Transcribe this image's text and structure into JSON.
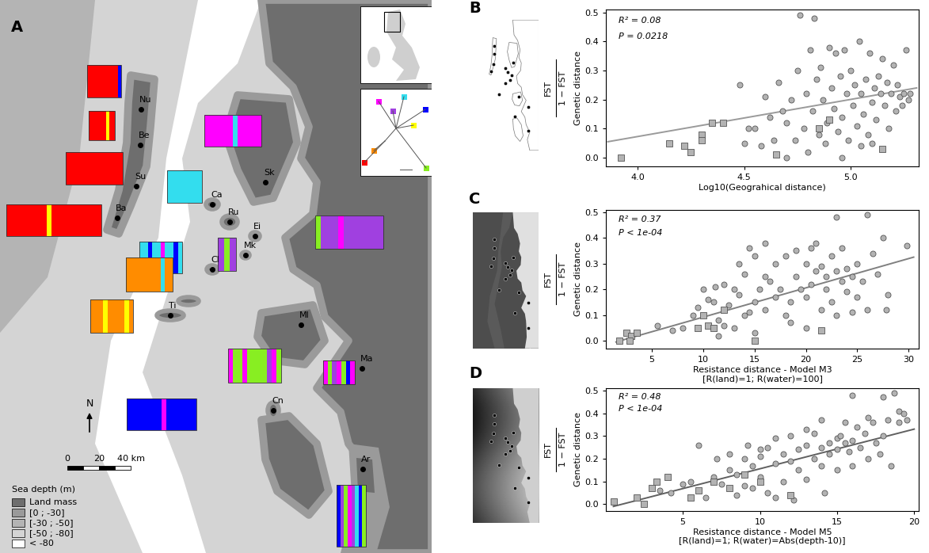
{
  "map": {
    "panel": "A",
    "sites": [
      "Nu",
      "Be",
      "Su",
      "Ba",
      "Ca",
      "Ru",
      "Sk",
      "Ei",
      "Mk",
      "Cl",
      "Ti",
      "Ml",
      "Ma",
      "Cn",
      "Ar"
    ],
    "north": "N",
    "scale_labels": [
      "0",
      "20",
      "40 km"
    ],
    "depth_legend": {
      "title": "Sea depth (m)",
      "entries": [
        {
          "label": "Land mass",
          "color": "#6e6e6e"
        },
        {
          "label": "[0 ; -30]",
          "color": "#9a9a9a"
        },
        {
          "label": "[-30 ; -50]",
          "color": "#b4b4b4"
        },
        {
          "label": "[-50 ; -80]",
          "color": "#d4d4d4"
        },
        {
          "label": "< -80",
          "color": "#ffffff"
        }
      ]
    },
    "clusters": [
      "#ff00ff",
      "#33ddee",
      "#0000ff",
      "#ffff00",
      "#a040e0",
      "#ff8c00",
      "#ff0000",
      "#88ee22"
    ],
    "structure": [
      {
        "site": "Nu",
        "colors": [
          "#ff0000",
          "#ff0000",
          "#ff0000",
          "#ff0000",
          "#ff0000",
          "#ff0000",
          "#ff0000",
          "#ff0000",
          "#ff0000",
          "#0000ff"
        ]
      },
      {
        "site": "Be",
        "colors": [
          "#ff0000",
          "#ff0000",
          "#ff0000",
          "#ff0000",
          "#ff0000",
          "#ff0000",
          "#ffff00",
          "#ff0000",
          "#ff0000"
        ]
      },
      {
        "site": "Su",
        "colors": [
          "#ff0000",
          "#ff0000",
          "#ff0000",
          "#ff0000",
          "#ff0000",
          "#ff0000",
          "#ff0000",
          "#ff0000",
          "#ff0000",
          "#ff0000",
          "#ff0000",
          "#ff0000"
        ]
      },
      {
        "site": "Ba",
        "colors": [
          "#ff0000",
          "#ff0000",
          "#ff0000",
          "#ff0000",
          "#ff0000",
          "#ff0000",
          "#ff0000",
          "#ff0000",
          "#ffff00",
          "#ff0000",
          "#ff0000",
          "#ff0000",
          "#ff0000",
          "#ff0000",
          "#ff0000",
          "#ff0000",
          "#ff0000",
          "#ff0000",
          "#ff0000"
        ]
      },
      {
        "site": "Ca",
        "colors": [
          "#33ddee",
          "#33ddee",
          "#33ddee",
          "#33ddee",
          "#33ddee",
          "#33ddee",
          "#33ddee",
          "#33ddee"
        ]
      },
      {
        "site": "Ru",
        "colors": [
          "#33ddee",
          "#33ddee",
          "#0000ff",
          "#33ddee",
          "#33ddee",
          "#ff00ff",
          "#33ddee",
          "#33ddee",
          "#0000ff",
          "#33ddee"
        ]
      },
      {
        "site": "Sk",
        "colors": [
          "#ff00ff",
          "#ff00ff",
          "#ff00ff",
          "#ff00ff",
          "#ff00ff",
          "#ff00ff",
          "#33ddee",
          "#ff00ff",
          "#ff00ff",
          "#ff00ff",
          "#ff00ff",
          "#ff00ff"
        ]
      },
      {
        "site": "Ei",
        "colors": [
          "#88ee22",
          "#a040e0",
          "#a040e0",
          "#a040e0",
          "#ff00ff",
          "#a040e0",
          "#a040e0",
          "#a040e0",
          "#a040e0",
          "#a040e0",
          "#a040e0",
          "#a040e0"
        ]
      },
      {
        "site": "Mk",
        "colors": [
          "#a040e0",
          "#88ee22",
          "#a040e0"
        ]
      },
      {
        "site": "Cl",
        "colors": [
          "#ff8c00",
          "#ff8c00",
          "#ff8c00",
          "#ff8c00",
          "#ff8c00",
          "#ff8c00",
          "#ff8c00",
          "#ff8c00",
          "#ff8c00",
          "#33ddee",
          "#ff8c00",
          "#ff8c00"
        ]
      },
      {
        "site": "Ti",
        "colors": [
          "#ff8c00",
          "#ff8c00",
          "#ff8c00",
          "#ffff00",
          "#ff8c00",
          "#ff8c00",
          "#ff8c00",
          "#ff8c00",
          "#ffff00",
          "#ff8c00"
        ]
      },
      {
        "site": "Ml",
        "colors": [
          "#ff00ff",
          "#88ee22",
          "#88ee22",
          "#ff00ff",
          "#88ee22",
          "#88ee22",
          "#88ee22",
          "#88ee22",
          "#a040e0",
          "#ff00ff",
          "#88ee22"
        ]
      },
      {
        "site": "Ma",
        "colors": [
          "#ff00ff",
          "#88ee22",
          "#a040e0",
          "#ff00ff",
          "#88ee22",
          "#0000ff",
          "#ff00ff"
        ]
      },
      {
        "site": "Cn",
        "colors": [
          "#0000ff",
          "#0000ff",
          "#0000ff",
          "#0000ff",
          "#0000ff",
          "#0000ff",
          "#0000ff",
          "#0000ff",
          "#ff00ff",
          "#0000ff",
          "#0000ff",
          "#0000ff",
          "#0000ff",
          "#0000ff",
          "#0000ff",
          "#0000ff"
        ]
      },
      {
        "site": "Ar",
        "colors": [
          "#0000ff",
          "#a040e0",
          "#88ee22",
          "#ff00ff",
          "#a040e0",
          "#33ddee",
          "#0000ff",
          "#88ee22"
        ]
      }
    ]
  },
  "chart_data": [
    {
      "type": "scatter",
      "panel": "B",
      "xlabel": "Log10(Geograhical distance)",
      "ylabel": "Genetic distance",
      "ylabel_numerator": "FST",
      "ylabel_denominator": "1 − FST",
      "annotations": [
        "R² = 0.08",
        "P = 0.0218"
      ],
      "xlim": [
        3.85,
        5.32
      ],
      "ylim": [
        -0.03,
        0.51
      ],
      "xticks": [
        {
          "value": 4,
          "label": "4.0"
        },
        4.5,
        {
          "value": 5,
          "label": "5.0"
        }
      ],
      "yticks": [
        {
          "value": 0,
          "label": "0.0"
        },
        0.1,
        0.2,
        0.3,
        0.4,
        0.5
      ],
      "series": [
        {
          "marker": "circle",
          "color": "#b3b3b3",
          "x": [
            4.48,
            4.5,
            4.52,
            4.55,
            4.58,
            4.6,
            4.62,
            4.64,
            4.66,
            4.68,
            4.7,
            4.72,
            4.74,
            4.75,
            4.76,
            4.78,
            4.79,
            4.8,
            4.81,
            4.82,
            4.83,
            4.84,
            4.85,
            4.86,
            4.87,
            4.88,
            4.89,
            4.9,
            4.91,
            4.92,
            4.93,
            4.94,
            4.95,
            4.96,
            4.97,
            4.98,
            4.99,
            5.0,
            5.01,
            5.02,
            5.03,
            5.04,
            5.05,
            5.06,
            5.07,
            5.08,
            5.09,
            5.1,
            5.11,
            5.12,
            5.13,
            5.14,
            5.15,
            5.16,
            5.17,
            5.18,
            5.19,
            5.2,
            5.21,
            5.22,
            5.23,
            5.24,
            5.25,
            5.26,
            5.27,
            5.28,
            4.96,
            4.7,
            5.05,
            5.1
          ],
          "values": [
            0.25,
            0.05,
            0.1,
            0.1,
            0.04,
            0.21,
            0.14,
            0.06,
            0.26,
            0.16,
            0.12,
            0.2,
            0.06,
            0.3,
            0.49,
            0.1,
            0.22,
            0.02,
            0.37,
            0.16,
            0.48,
            0.27,
            0.08,
            0.31,
            0.2,
            0.05,
            0.12,
            0.38,
            0.24,
            0.17,
            0.36,
            0.09,
            0.28,
            0.14,
            0.37,
            0.22,
            0.06,
            0.3,
            0.18,
            0.25,
            0.11,
            0.4,
            0.22,
            0.15,
            0.27,
            0.08,
            0.36,
            0.19,
            0.24,
            0.13,
            0.28,
            0.22,
            0.34,
            0.18,
            0.26,
            0.1,
            0.22,
            0.32,
            0.16,
            0.25,
            0.21,
            0.18,
            0.22,
            0.37,
            0.2,
            0.22,
            0.0,
            0.0,
            0.04,
            0.05
          ]
        },
        {
          "marker": "square",
          "color": "#b3b3b3",
          "x": [
            3.92,
            4.15,
            4.22,
            4.25,
            4.3,
            4.3,
            4.35,
            4.4,
            4.85,
            4.9,
            5.15,
            4.65
          ],
          "values": [
            0.0,
            0.05,
            0.04,
            0.02,
            0.08,
            0.06,
            0.12,
            0.12,
            0.1,
            0.13,
            0.03,
            0.01
          ]
        }
      ],
      "fit": {
        "x": [
          3.86,
          5.31
        ],
        "values": [
          0.055,
          0.24
        ],
        "color": "#9a9a9a"
      }
    },
    {
      "type": "scatter",
      "panel": "C",
      "xlabel": "Resistance distance - Model M3\n[R(land)=1; R(water)=100]",
      "ylabel": "Genetic distance",
      "ylabel_numerator": "FST",
      "ylabel_denominator": "1 − FST",
      "annotations": [
        "R² = 0.37",
        "P < 1e-04"
      ],
      "xlim": [
        0.5,
        31
      ],
      "ylim": [
        -0.03,
        0.51
      ],
      "xticks": [
        5,
        10,
        15,
        20,
        25,
        30
      ],
      "yticks": [
        {
          "value": 0,
          "label": "0.0"
        },
        0.1,
        0.2,
        0.3,
        0.4,
        0.5
      ],
      "series": [
        {
          "marker": "circle",
          "color": "#b3b3b3",
          "x": [
            5.5,
            7,
            8,
            9,
            9.5,
            10,
            10.5,
            11,
            11.2,
            11.5,
            12,
            12,
            12.5,
            13,
            13,
            13.5,
            14,
            14,
            14.5,
            15,
            15,
            15.5,
            16,
            16,
            16.5,
            17,
            17,
            17.5,
            18,
            18,
            18.5,
            19,
            19,
            19.5,
            20,
            20,
            20.5,
            20.5,
            21,
            21,
            21.5,
            21.5,
            22,
            22,
            22.5,
            22.5,
            23,
            23,
            23,
            23.5,
            23.5,
            24,
            24,
            24.5,
            24.5,
            25,
            25,
            25.5,
            26,
            26,
            26.5,
            27,
            27.5,
            27.8,
            28,
            29.8,
            16,
            15,
            14.5,
            20,
            18.5,
            13.5,
            11.5
          ],
          "values": [
            0.06,
            0.04,
            0.05,
            0.1,
            0.13,
            0.2,
            0.16,
            0.15,
            0.21,
            0.08,
            0.06,
            0.22,
            0.14,
            0.2,
            0.05,
            0.18,
            0.26,
            0.1,
            0.11,
            0.15,
            0.03,
            0.2,
            0.12,
            0.25,
            0.23,
            0.3,
            0.17,
            0.2,
            0.1,
            0.33,
            0.15,
            0.25,
            0.35,
            0.2,
            0.3,
            0.17,
            0.36,
            0.22,
            0.38,
            0.27,
            0.12,
            0.29,
            0.2,
            0.25,
            0.15,
            0.33,
            0.48,
            0.27,
            0.1,
            0.36,
            0.23,
            0.19,
            0.28,
            0.11,
            0.25,
            0.17,
            0.3,
            0.23,
            0.49,
            0.12,
            0.34,
            0.26,
            0.4,
            0.12,
            0.18,
            0.37,
            0.38,
            0.33,
            0.36,
            0.05,
            0.07,
            0.3,
            0.02
          ]
        },
        {
          "marker": "square",
          "color": "#b3b3b3",
          "x": [
            1.8,
            2.5,
            3.0,
            3.5,
            2.8,
            9.5,
            10.5,
            11,
            12,
            15,
            21.5,
            10
          ],
          "values": [
            0.0,
            0.03,
            0.02,
            0.03,
            0.0,
            0.05,
            0.06,
            0.05,
            0.12,
            0.0,
            0.04,
            0.1
          ]
        }
      ],
      "fit": {
        "x": [
          1.5,
          30.5
        ],
        "values": [
          -0.005,
          0.325
        ],
        "color": "#808080"
      }
    },
    {
      "type": "scatter",
      "panel": "D",
      "xlabel": "Resistance distance - Model M5\n[R(land)=1; R(water)=Abs(depth-10)]",
      "ylabel": "Genetic distance",
      "ylabel_numerator": "FST",
      "ylabel_denominator": "1 − FST",
      "annotations": [
        "R² = 0.48",
        "P < 1e-04"
      ],
      "xlim": [
        0,
        20.3
      ],
      "ylim": [
        -0.03,
        0.51
      ],
      "xticks": [
        5,
        10,
        15,
        20
      ],
      "yticks": [
        {
          "value": 0,
          "label": "0.0"
        },
        0.1,
        0.2,
        0.3,
        0.4,
        0.5
      ],
      "series": [
        {
          "marker": "circle",
          "color": "#b3b3b3",
          "x": [
            3.5,
            4.2,
            5,
            5.5,
            6,
            6.5,
            7,
            7.2,
            7.5,
            8,
            8,
            8.5,
            8.5,
            9,
            9,
            9.5,
            9.5,
            10,
            10,
            10.5,
            10.5,
            11,
            11,
            11.5,
            11.5,
            12,
            12,
            12.5,
            12.5,
            13,
            13,
            13,
            13.5,
            13.5,
            14,
            14,
            14,
            14.5,
            14.5,
            15,
            15,
            15,
            15.2,
            15.5,
            15.5,
            15.8,
            16,
            16,
            16,
            16.3,
            16.5,
            16.8,
            17,
            17,
            17.3,
            17.5,
            17.8,
            18,
            18,
            18.3,
            18.5,
            18.7,
            19,
            19,
            19.3,
            19.5,
            14.2,
            12.2,
            11,
            10,
            9.2
          ],
          "values": [
            0.06,
            0.05,
            0.09,
            0.1,
            0.26,
            0.03,
            0.12,
            0.2,
            0.09,
            0.15,
            0.22,
            0.04,
            0.13,
            0.08,
            0.2,
            0.17,
            0.07,
            0.21,
            0.12,
            0.25,
            0.05,
            0.18,
            0.29,
            0.22,
            0.1,
            0.3,
            0.19,
            0.15,
            0.24,
            0.26,
            0.33,
            0.11,
            0.2,
            0.31,
            0.25,
            0.17,
            0.37,
            0.27,
            0.22,
            0.29,
            0.24,
            0.15,
            0.3,
            0.27,
            0.36,
            0.23,
            0.48,
            0.28,
            0.17,
            0.34,
            0.25,
            0.31,
            0.38,
            0.2,
            0.36,
            0.27,
            0.22,
            0.47,
            0.3,
            0.37,
            0.17,
            0.49,
            0.41,
            0.36,
            0.4,
            0.37,
            0.05,
            0.02,
            0.03,
            0.24,
            0.26
          ]
        },
        {
          "marker": "square",
          "color": "#b3b3b3",
          "x": [
            0.5,
            2,
            2.5,
            3,
            3.3,
            4,
            5.5,
            6,
            7,
            8,
            9,
            10,
            12
          ],
          "values": [
            0.01,
            0.03,
            0.0,
            0.07,
            0.1,
            0.12,
            0.03,
            0.06,
            0.1,
            0.07,
            0.13,
            0.1,
            0.04
          ]
        }
      ],
      "fit": {
        "x": [
          0.5,
          20
        ],
        "values": [
          -0.01,
          0.33
        ],
        "color": "#606060"
      }
    }
  ]
}
